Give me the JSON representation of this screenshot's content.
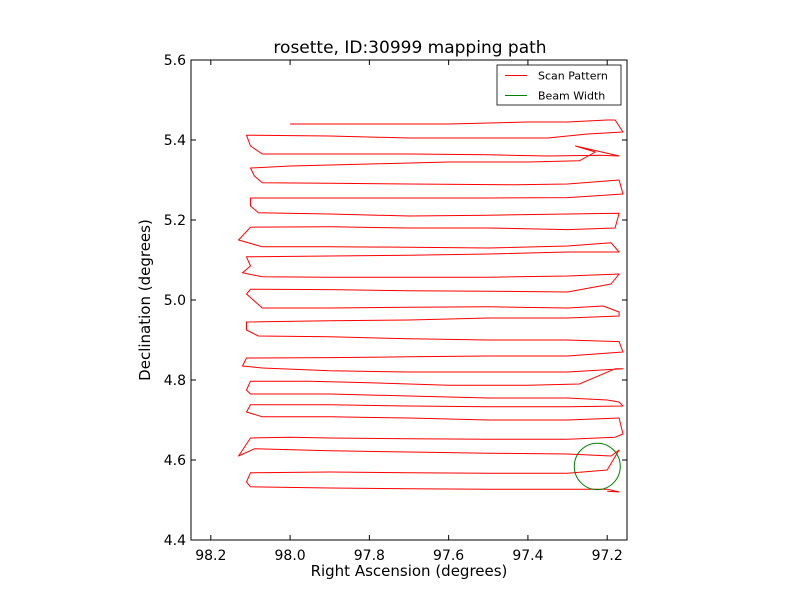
{
  "chart_data": {
    "type": "line",
    "title": "rosette, ID:30999 mapping path",
    "xlabel": "Right Ascension (degrees)",
    "ylabel": "Declination (degrees)",
    "xlim": [
      98.25,
      97.15
    ],
    "ylim": [
      4.4,
      5.6
    ],
    "x_ticks": [
      98.2,
      98.0,
      97.8,
      97.6,
      97.4,
      97.2
    ],
    "x_tick_labels": [
      "98.2",
      "98.0",
      "97.8",
      "97.6",
      "97.4",
      "97.2"
    ],
    "y_ticks": [
      4.4,
      4.6,
      4.8,
      5.0,
      5.2,
      5.4,
      5.6
    ],
    "y_tick_labels": [
      "4.4",
      "4.6",
      "4.8",
      "5.0",
      "5.2",
      "5.4",
      "5.6"
    ],
    "grid": false,
    "legend": {
      "location": "top-right"
    },
    "series": [
      {
        "name": "Scan Pattern",
        "color": "#ff0000",
        "kind": "path",
        "points": [
          [
            98.0,
            5.44
          ],
          [
            97.9,
            5.44
          ],
          [
            97.6,
            5.44
          ],
          [
            97.4,
            5.445
          ],
          [
            97.3,
            5.445
          ],
          [
            97.2,
            5.45
          ],
          [
            97.18,
            5.45
          ],
          [
            97.16,
            5.42
          ],
          [
            97.25,
            5.415
          ],
          [
            97.35,
            5.405
          ],
          [
            97.5,
            5.405
          ],
          [
            97.7,
            5.405
          ],
          [
            97.9,
            5.41
          ],
          [
            98.11,
            5.412
          ],
          [
            98.1,
            5.385
          ],
          [
            98.07,
            5.365
          ],
          [
            97.9,
            5.365
          ],
          [
            97.7,
            5.365
          ],
          [
            97.5,
            5.363
          ],
          [
            97.35,
            5.36
          ],
          [
            97.22,
            5.362
          ],
          [
            97.17,
            5.36
          ],
          [
            97.28,
            5.385
          ],
          [
            97.23,
            5.37
          ],
          [
            97.27,
            5.348
          ],
          [
            97.4,
            5.345
          ],
          [
            97.6,
            5.345
          ],
          [
            97.8,
            5.34
          ],
          [
            98.0,
            5.335
          ],
          [
            98.1,
            5.33
          ],
          [
            98.09,
            5.31
          ],
          [
            98.07,
            5.293
          ],
          [
            97.9,
            5.292
          ],
          [
            97.7,
            5.29
          ],
          [
            97.43,
            5.288
          ],
          [
            97.3,
            5.29
          ],
          [
            97.17,
            5.3
          ],
          [
            97.16,
            5.265
          ],
          [
            97.3,
            5.256
          ],
          [
            97.5,
            5.255
          ],
          [
            97.7,
            5.255
          ],
          [
            97.9,
            5.255
          ],
          [
            98.1,
            5.255
          ],
          [
            98.1,
            5.235
          ],
          [
            98.08,
            5.218
          ],
          [
            97.9,
            5.215
          ],
          [
            97.7,
            5.21
          ],
          [
            97.5,
            5.212
          ],
          [
            97.3,
            5.215
          ],
          [
            97.17,
            5.217
          ],
          [
            97.18,
            5.18
          ],
          [
            97.3,
            5.176
          ],
          [
            97.5,
            5.18
          ],
          [
            97.7,
            5.18
          ],
          [
            97.9,
            5.183
          ],
          [
            98.1,
            5.182
          ],
          [
            98.13,
            5.15
          ],
          [
            98.07,
            5.133
          ],
          [
            97.9,
            5.133
          ],
          [
            97.7,
            5.132
          ],
          [
            97.5,
            5.13
          ],
          [
            97.3,
            5.135
          ],
          [
            97.19,
            5.143
          ],
          [
            97.17,
            5.12
          ],
          [
            97.3,
            5.12
          ],
          [
            97.5,
            5.115
          ],
          [
            97.7,
            5.112
          ],
          [
            97.9,
            5.11
          ],
          [
            98.11,
            5.108
          ],
          [
            98.1,
            5.085
          ],
          [
            98.12,
            5.068
          ],
          [
            98.07,
            5.058
          ],
          [
            97.9,
            5.057
          ],
          [
            97.7,
            5.057
          ],
          [
            97.5,
            5.057
          ],
          [
            97.3,
            5.06
          ],
          [
            97.17,
            5.065
          ],
          [
            97.19,
            5.04
          ],
          [
            97.3,
            5.02
          ],
          [
            97.5,
            5.022
          ],
          [
            97.7,
            5.023
          ],
          [
            97.9,
            5.026
          ],
          [
            98.1,
            5.027
          ],
          [
            98.11,
            5.015
          ],
          [
            98.07,
            4.98
          ],
          [
            97.9,
            4.98
          ],
          [
            97.7,
            4.982
          ],
          [
            97.5,
            4.983
          ],
          [
            97.3,
            4.98
          ],
          [
            97.21,
            4.985
          ],
          [
            97.17,
            4.97
          ],
          [
            97.17,
            4.96
          ],
          [
            97.3,
            4.955
          ],
          [
            97.5,
            4.955
          ],
          [
            97.7,
            4.95
          ],
          [
            97.9,
            4.948
          ],
          [
            98.11,
            4.945
          ],
          [
            98.11,
            4.925
          ],
          [
            98.08,
            4.91
          ],
          [
            97.9,
            4.908
          ],
          [
            97.7,
            4.903
          ],
          [
            97.5,
            4.9
          ],
          [
            97.3,
            4.9
          ],
          [
            97.17,
            4.896
          ],
          [
            97.16,
            4.87
          ],
          [
            97.3,
            4.86
          ],
          [
            97.5,
            4.86
          ],
          [
            97.7,
            4.858
          ],
          [
            97.9,
            4.856
          ],
          [
            98.11,
            4.855
          ],
          [
            98.12,
            4.835
          ],
          [
            98.07,
            4.83
          ],
          [
            97.9,
            4.823
          ],
          [
            97.7,
            4.82
          ],
          [
            97.5,
            4.82
          ],
          [
            97.3,
            4.82
          ],
          [
            97.16,
            4.828
          ],
          [
            97.18,
            4.828
          ],
          [
            97.27,
            4.79
          ],
          [
            97.4,
            4.787
          ],
          [
            97.6,
            4.787
          ],
          [
            97.8,
            4.793
          ],
          [
            97.95,
            4.797
          ],
          [
            98.1,
            4.797
          ],
          [
            98.11,
            4.775
          ],
          [
            98.1,
            4.765
          ],
          [
            97.9,
            4.765
          ],
          [
            97.7,
            4.76
          ],
          [
            97.5,
            4.755
          ],
          [
            97.3,
            4.755
          ],
          [
            97.2,
            4.75
          ],
          [
            97.17,
            4.745
          ],
          [
            97.16,
            4.735
          ],
          [
            97.3,
            4.733
          ],
          [
            97.5,
            4.733
          ],
          [
            97.7,
            4.735
          ],
          [
            97.9,
            4.738
          ],
          [
            98.1,
            4.738
          ],
          [
            98.11,
            4.72
          ],
          [
            98.07,
            4.708
          ],
          [
            97.9,
            4.708
          ],
          [
            97.7,
            4.705
          ],
          [
            97.5,
            4.7
          ],
          [
            97.3,
            4.7
          ],
          [
            97.17,
            4.705
          ],
          [
            97.16,
            4.665
          ],
          [
            97.18,
            4.657
          ],
          [
            97.3,
            4.652
          ],
          [
            97.5,
            4.652
          ],
          [
            97.7,
            4.653
          ],
          [
            97.9,
            4.655
          ],
          [
            98.0,
            4.657
          ],
          [
            98.1,
            4.655
          ],
          [
            98.13,
            4.61
          ],
          [
            98.09,
            4.628
          ],
          [
            97.9,
            4.623
          ],
          [
            97.7,
            4.62
          ],
          [
            97.5,
            4.617
          ],
          [
            97.3,
            4.615
          ],
          [
            97.19,
            4.61
          ],
          [
            97.17,
            4.625
          ],
          [
            97.2,
            4.575
          ],
          [
            97.3,
            4.567
          ],
          [
            97.5,
            4.567
          ],
          [
            97.7,
            4.568
          ],
          [
            97.9,
            4.57
          ],
          [
            98.1,
            4.568
          ],
          [
            98.11,
            4.545
          ],
          [
            98.1,
            4.533
          ],
          [
            97.9,
            4.53
          ],
          [
            97.7,
            4.528
          ],
          [
            97.5,
            4.527
          ],
          [
            97.3,
            4.527
          ],
          [
            97.2,
            4.527
          ],
          [
            97.17,
            4.52
          ],
          [
            97.2,
            4.522
          ]
        ]
      },
      {
        "name": "Beam Width",
        "color": "#008000",
        "kind": "circle",
        "center": [
          97.225,
          4.584
        ],
        "radius": 0.058
      }
    ]
  }
}
